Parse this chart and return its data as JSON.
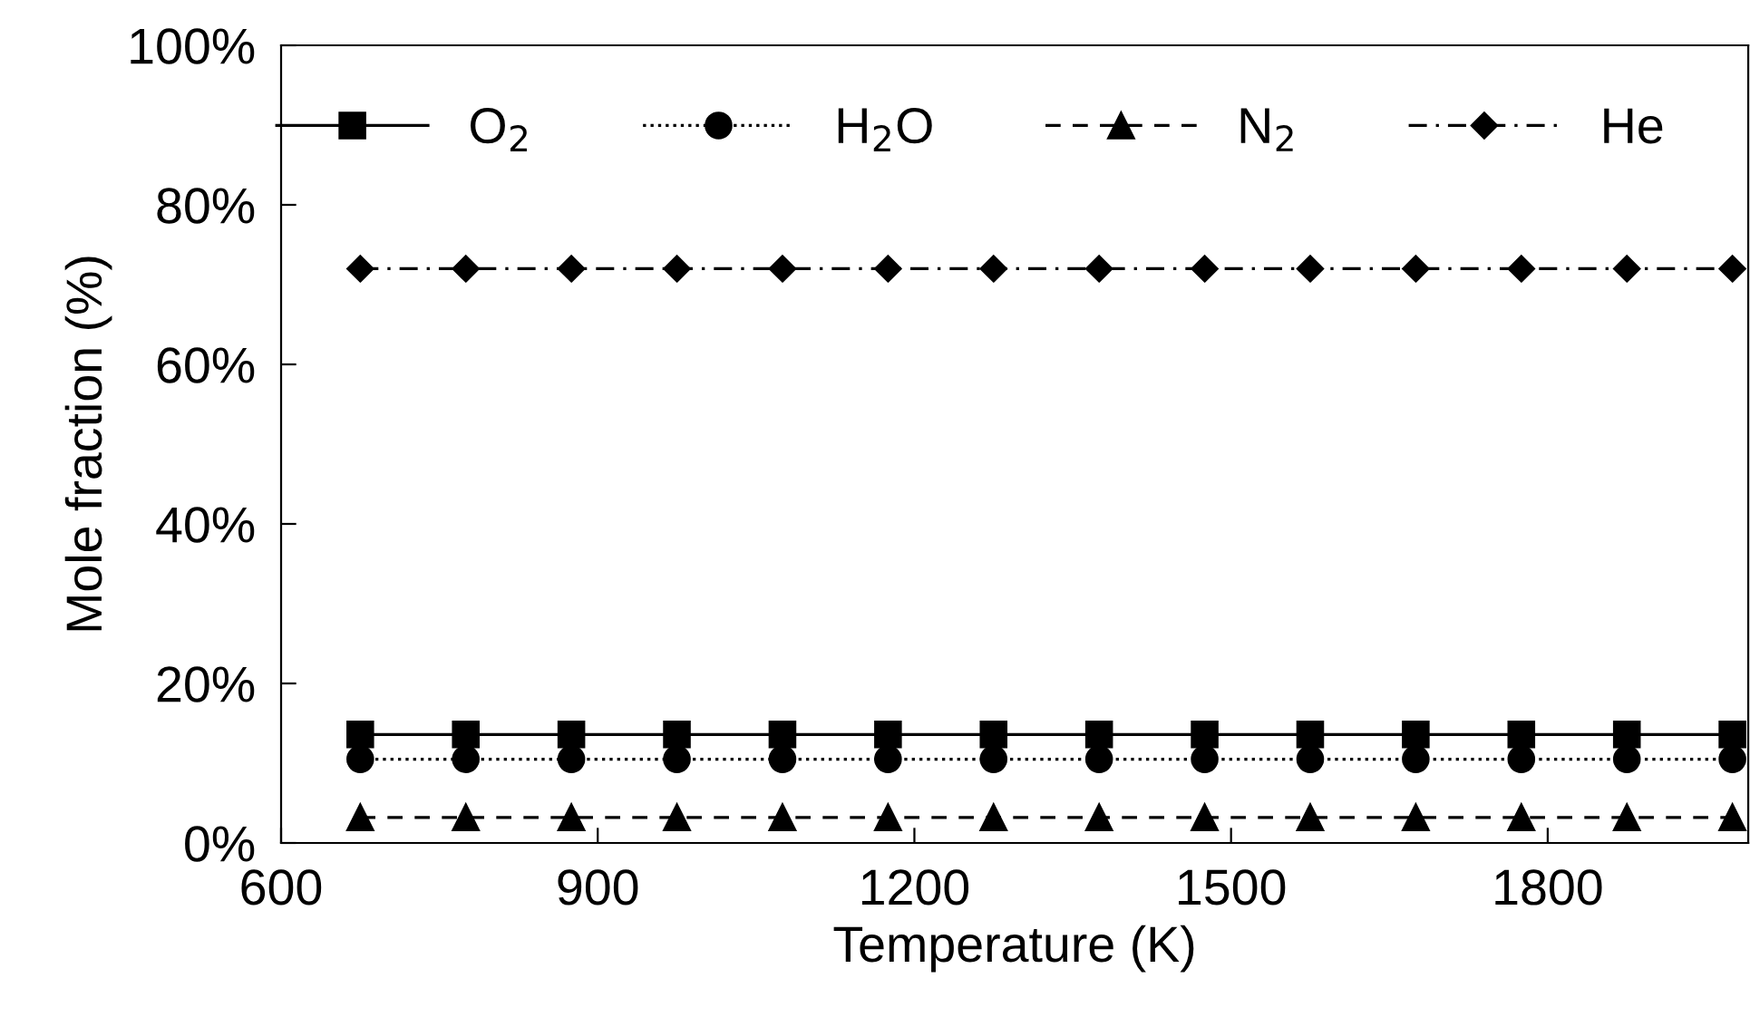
{
  "chart_data": {
    "type": "line",
    "xlabel": "Temperature (K)",
    "ylabel": "Mole fraction (%)",
    "x": [
      675,
      775,
      875,
      975,
      1075,
      1175,
      1275,
      1375,
      1475,
      1575,
      1675,
      1775,
      1875,
      1975
    ],
    "series": [
      {
        "name": "O$_{2}$",
        "color": "#000000",
        "marker": "square",
        "line_style": "solid",
        "values": [
          13.6,
          13.6,
          13.6,
          13.6,
          13.6,
          13.6,
          13.6,
          13.6,
          13.6,
          13.6,
          13.6,
          13.6,
          13.6,
          13.6
        ]
      },
      {
        "name": "H$_{2}$O",
        "color": "#000000",
        "marker": "circle",
        "line_style": "dotted",
        "values": [
          10.5,
          10.5,
          10.5,
          10.5,
          10.5,
          10.5,
          10.5,
          10.5,
          10.5,
          10.5,
          10.5,
          10.5,
          10.5,
          10.5
        ]
      },
      {
        "name": "N$_{2}$",
        "color": "#000000",
        "marker": "triangle",
        "line_style": "dashed",
        "values": [
          3.2,
          3.2,
          3.2,
          3.2,
          3.2,
          3.2,
          3.2,
          3.2,
          3.2,
          3.2,
          3.2,
          3.2,
          3.2,
          3.2
        ]
      },
      {
        "name": "He",
        "color": "#000000",
        "marker": "diamond",
        "line_style": "dashdot",
        "values": [
          72,
          72,
          72,
          72,
          72,
          72,
          72,
          72,
          72,
          72,
          72,
          72,
          72,
          72
        ]
      }
    ],
    "xlim": [
      600,
      1990
    ],
    "xticks": [
      600,
      900,
      1200,
      1500,
      1800
    ],
    "ylim": [
      0,
      100
    ],
    "yticks": [
      {
        "value": 0,
        "label": "0%"
      },
      {
        "value": 20,
        "label": "20%"
      },
      {
        "value": 40,
        "label": "40%"
      },
      {
        "value": 60,
        "label": "60%"
      },
      {
        "value": 80,
        "label": "80%"
      },
      {
        "value": 100,
        "label": "100%"
      }
    ],
    "grid": false,
    "legend": "top"
  }
}
